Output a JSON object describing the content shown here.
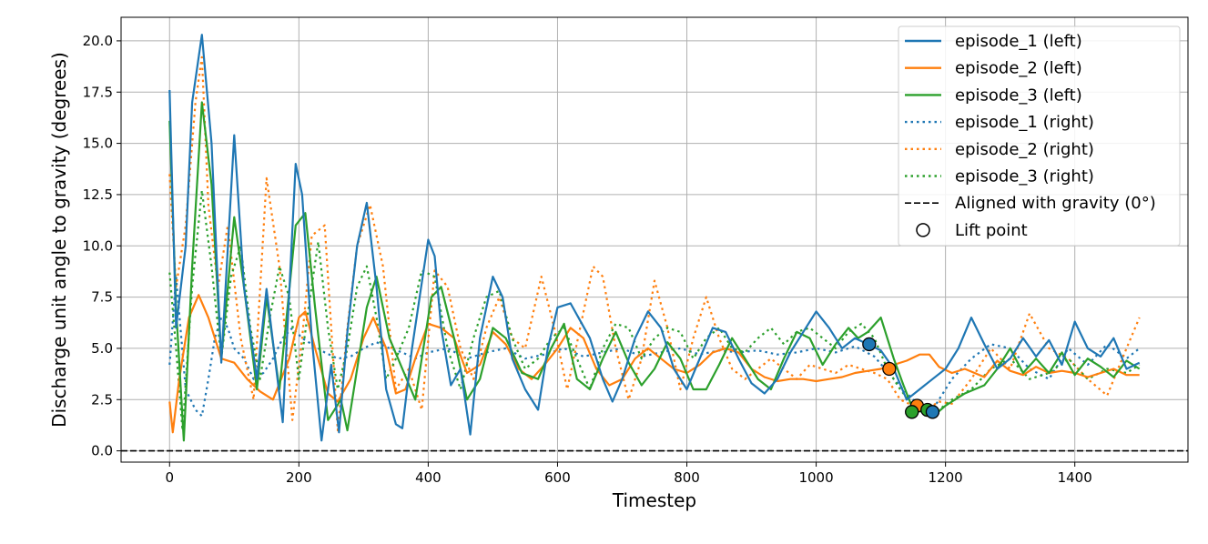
{
  "chart_data": {
    "type": "line",
    "title": "",
    "xlabel": "Timestep",
    "ylabel": "Discharge unit angle to gravity (degrees)",
    "xlim": [
      -75,
      1575
    ],
    "ylim": [
      -0.55,
      21.15
    ],
    "xticks": [
      0,
      200,
      400,
      600,
      800,
      1000,
      1200,
      1400
    ],
    "yticks": [
      0.0,
      2.5,
      5.0,
      7.5,
      10.0,
      12.5,
      15.0,
      17.5,
      20.0
    ],
    "xtick_labels": [
      "0",
      "200",
      "400",
      "600",
      "800",
      "1000",
      "1200",
      "1400"
    ],
    "ytick_labels": [
      "0.0",
      "2.5",
      "5.0",
      "7.5",
      "10.0",
      "12.5",
      "15.0",
      "17.5",
      "20.0"
    ],
    "grid": true,
    "legend_position": "upper right",
    "colors": {
      "blue": "#1f77b4",
      "orange": "#ff7f0e",
      "green": "#2ca02c",
      "reference": "#000000",
      "grid": "#b0b0b0"
    },
    "series": [
      {
        "name": "episode_1 (left)",
        "color": "#1f77b4",
        "style": "solid",
        "x": [
          0,
          10,
          25,
          35,
          50,
          65,
          80,
          100,
          115,
          135,
          150,
          175,
          195,
          205,
          220,
          235,
          250,
          262,
          275,
          290,
          305,
          320,
          335,
          350,
          360,
          375,
          400,
          410,
          420,
          435,
          450,
          465,
          480,
          500,
          515,
          530,
          550,
          570,
          585,
          600,
          620,
          650,
          670,
          685,
          700,
          720,
          740,
          760,
          780,
          800,
          820,
          840,
          860,
          880,
          900,
          920,
          940,
          960,
          980,
          1000,
          1020,
          1040,
          1060,
          1080,
          1100,
          1120,
          1140,
          1160,
          1180,
          1200,
          1220,
          1240,
          1260,
          1280,
          1300,
          1320,
          1340,
          1360,
          1380,
          1400,
          1420,
          1440,
          1460,
          1480,
          1500
        ],
        "y": [
          17.6,
          6.0,
          10.0,
          17.0,
          20.3,
          15.0,
          4.3,
          15.4,
          8.0,
          3.5,
          7.9,
          1.4,
          14.0,
          12.5,
          5.5,
          0.5,
          4.2,
          0.9,
          5.8,
          10.0,
          12.1,
          8.0,
          3.0,
          1.3,
          1.1,
          5.0,
          10.3,
          9.5,
          6.0,
          3.2,
          4.0,
          0.8,
          5.5,
          8.5,
          7.5,
          4.5,
          3.0,
          2.0,
          5.0,
          7.0,
          7.2,
          5.5,
          3.5,
          2.4,
          3.5,
          5.5,
          6.8,
          6.0,
          4.0,
          3.0,
          4.5,
          6.0,
          5.8,
          4.5,
          3.3,
          2.8,
          3.5,
          4.8,
          5.8,
          6.8,
          6.0,
          5.0,
          5.5,
          5.2,
          4.9,
          4.0,
          2.5,
          3.0,
          3.5,
          4.0,
          5.0,
          6.5,
          5.2,
          4.0,
          4.5,
          5.5,
          4.6,
          5.4,
          4.2,
          6.3,
          5.0,
          4.6,
          5.5,
          4.0,
          4.3
        ]
      },
      {
        "name": "episode_2 (left)",
        "color": "#ff7f0e",
        "style": "solid",
        "x": [
          0,
          5,
          15,
          30,
          45,
          60,
          80,
          100,
          120,
          140,
          160,
          185,
          200,
          210,
          225,
          245,
          260,
          280,
          300,
          315,
          335,
          350,
          365,
          380,
          400,
          420,
          440,
          460,
          480,
          500,
          520,
          540,
          560,
          580,
          600,
          620,
          640,
          660,
          680,
          700,
          720,
          740,
          760,
          780,
          800,
          820,
          840,
          860,
          880,
          900,
          920,
          940,
          960,
          980,
          1000,
          1020,
          1040,
          1060,
          1080,
          1100,
          1120,
          1140,
          1160,
          1175,
          1190,
          1210,
          1230,
          1260,
          1280,
          1300,
          1320,
          1340,
          1360,
          1380,
          1400,
          1420,
          1440,
          1460,
          1480,
          1500
        ],
        "y": [
          2.4,
          0.9,
          3.5,
          6.5,
          7.6,
          6.5,
          4.5,
          4.3,
          3.5,
          2.9,
          2.5,
          4.5,
          6.5,
          6.8,
          5.0,
          2.8,
          2.4,
          3.5,
          5.5,
          6.5,
          5.0,
          2.8,
          3.0,
          4.5,
          6.2,
          6.0,
          5.5,
          3.8,
          4.2,
          5.8,
          5.2,
          4.0,
          3.5,
          4.2,
          5.0,
          6.0,
          5.5,
          4.0,
          3.2,
          3.5,
          4.5,
          5.0,
          4.5,
          4.0,
          3.8,
          4.2,
          4.8,
          5.0,
          4.8,
          4.0,
          3.6,
          3.4,
          3.5,
          3.5,
          3.4,
          3.5,
          3.6,
          3.8,
          3.9,
          4.0,
          4.2,
          4.4,
          4.7,
          4.7,
          4.1,
          3.8,
          4.0,
          3.6,
          4.4,
          3.9,
          3.7,
          4.1,
          3.8,
          3.9,
          3.8,
          3.6,
          3.8,
          4.0,
          3.7,
          3.7
        ]
      },
      {
        "name": "episode_3 (left)",
        "color": "#2ca02c",
        "style": "solid",
        "x": [
          0,
          10,
          22,
          35,
          50,
          65,
          80,
          100,
          115,
          135,
          150,
          170,
          195,
          210,
          225,
          245,
          265,
          275,
          290,
          305,
          320,
          340,
          360,
          380,
          405,
          420,
          440,
          460,
          480,
          500,
          520,
          545,
          570,
          590,
          610,
          630,
          650,
          670,
          690,
          710,
          730,
          750,
          770,
          790,
          810,
          830,
          850,
          870,
          890,
          910,
          930,
          950,
          970,
          990,
          1010,
          1030,
          1050,
          1065,
          1080,
          1100,
          1120,
          1135,
          1150,
          1165,
          1185,
          1200,
          1230,
          1260,
          1280,
          1300,
          1320,
          1340,
          1360,
          1380,
          1400,
          1420,
          1440,
          1460,
          1480,
          1500
        ],
        "y": [
          16.1,
          7.0,
          0.5,
          9.0,
          17.0,
          13.0,
          4.5,
          11.4,
          8.0,
          3.0,
          7.5,
          3.0,
          11.0,
          11.6,
          7.0,
          1.5,
          2.5,
          1.0,
          4.0,
          7.0,
          8.5,
          5.5,
          4.0,
          2.5,
          7.5,
          8.0,
          5.5,
          2.5,
          3.5,
          6.0,
          5.5,
          3.8,
          3.5,
          5.0,
          6.2,
          3.5,
          3.0,
          4.5,
          5.8,
          4.3,
          3.2,
          4.0,
          5.3,
          4.5,
          3.0,
          3.0,
          4.2,
          5.5,
          4.5,
          3.5,
          3.0,
          4.5,
          5.8,
          5.5,
          4.2,
          5.2,
          6.0,
          5.5,
          5.8,
          6.5,
          4.5,
          3.2,
          2.0,
          1.9,
          1.8,
          2.2,
          2.8,
          3.2,
          4.0,
          5.0,
          3.8,
          4.5,
          3.8,
          4.8,
          3.7,
          4.5,
          4.1,
          3.6,
          4.4,
          4.0
        ]
      },
      {
        "name": "episode_1 (right)",
        "color": "#1f77b4",
        "style": "dotted",
        "x": [
          0,
          10,
          25,
          40,
          50,
          60,
          70,
          80,
          90,
          100,
          115,
          130,
          145,
          160,
          175,
          190,
          205,
          220,
          240,
          260,
          280,
          300,
          320,
          340,
          360,
          380,
          400,
          430,
          460,
          490,
          520,
          550,
          580,
          610,
          640,
          670,
          700,
          730,
          760,
          790,
          820,
          850,
          880,
          910,
          940,
          970,
          1000,
          1030,
          1060,
          1090,
          1120,
          1150,
          1180,
          1210,
          1240,
          1270,
          1300,
          1330,
          1360,
          1390,
          1420,
          1450,
          1480,
          1500
        ],
        "y": [
          4.2,
          8.5,
          3.0,
          2.0,
          1.7,
          3.5,
          5.5,
          6.5,
          6.0,
          5.0,
          4.5,
          3.5,
          3.8,
          4.5,
          5.5,
          6.0,
          5.5,
          5.2,
          4.8,
          4.5,
          4.6,
          5.0,
          5.3,
          5.0,
          4.8,
          4.5,
          4.8,
          5.0,
          4.5,
          4.8,
          5.0,
          4.5,
          4.7,
          5.0,
          4.6,
          4.8,
          5.0,
          4.6,
          4.8,
          5.0,
          4.7,
          4.9,
          4.8,
          4.9,
          4.7,
          4.8,
          5.0,
          4.8,
          5.1,
          4.6,
          3.5,
          2.5,
          2.0,
          3.5,
          4.5,
          5.2,
          5.0,
          4.0,
          3.5,
          5.0,
          4.2,
          5.2,
          4.5,
          5.0
        ]
      },
      {
        "name": "episode_2 (right)",
        "color": "#ff7f0e",
        "style": "dotted",
        "x": [
          0,
          10,
          25,
          40,
          50,
          60,
          75,
          90,
          110,
          130,
          150,
          170,
          190,
          205,
          220,
          240,
          260,
          275,
          290,
          310,
          330,
          350,
          370,
          390,
          410,
          430,
          450,
          470,
          490,
          510,
          530,
          550,
          575,
          595,
          615,
          635,
          655,
          670,
          690,
          710,
          730,
          750,
          770,
          790,
          810,
          830,
          850,
          870,
          890,
          910,
          930,
          950,
          970,
          990,
          1010,
          1030,
          1050,
          1070,
          1090,
          1110,
          1130,
          1150,
          1170,
          1190,
          1210,
          1240,
          1270,
          1300,
          1330,
          1360,
          1390,
          1420,
          1450,
          1480,
          1500
        ],
        "y": [
          13.5,
          8.0,
          11.0,
          17.0,
          19.2,
          12.0,
          8.0,
          11.0,
          5.5,
          2.5,
          13.3,
          9.0,
          1.5,
          5.5,
          10.5,
          11.0,
          1.0,
          6.0,
          10.0,
          12.0,
          9.0,
          3.0,
          4.0,
          2.0,
          8.8,
          8.0,
          5.0,
          3.5,
          6.0,
          7.5,
          5.5,
          5.0,
          8.5,
          6.0,
          3.0,
          6.0,
          9.0,
          8.5,
          5.0,
          2.5,
          4.5,
          8.3,
          6.0,
          3.0,
          5.5,
          7.5,
          5.5,
          4.0,
          3.5,
          4.0,
          4.5,
          4.0,
          3.5,
          4.2,
          4.0,
          3.8,
          4.2,
          4.0,
          3.8,
          3.5,
          2.5,
          2.2,
          2.0,
          2.4,
          2.3,
          3.5,
          5.0,
          4.0,
          6.7,
          5.0,
          4.5,
          3.5,
          2.7,
          5.0,
          6.5
        ]
      },
      {
        "name": "episode_3 (right)",
        "color": "#2ca02c",
        "style": "dotted",
        "x": [
          0,
          10,
          20,
          35,
          50,
          65,
          80,
          95,
          110,
          125,
          140,
          155,
          170,
          185,
          200,
          215,
          230,
          245,
          260,
          275,
          290,
          305,
          320,
          335,
          350,
          370,
          390,
          410,
          430,
          450,
          470,
          490,
          510,
          530,
          550,
          570,
          590,
          610,
          630,
          650,
          670,
          690,
          710,
          730,
          750,
          770,
          790,
          810,
          830,
          850,
          870,
          890,
          910,
          930,
          950,
          970,
          990,
          1010,
          1030,
          1050,
          1070,
          1090,
          1110,
          1130,
          1150,
          1170,
          1190,
          1210,
          1240,
          1270,
          1300,
          1330,
          1360,
          1390,
          1420,
          1450,
          1480,
          1500
        ],
        "y": [
          8.7,
          5.0,
          1.0,
          8.0,
          12.7,
          9.0,
          4.5,
          8.5,
          10.0,
          6.0,
          3.5,
          6.5,
          9.0,
          7.5,
          3.5,
          7.0,
          10.2,
          6.0,
          3.0,
          5.0,
          8.0,
          9.0,
          6.5,
          3.5,
          4.5,
          6.0,
          8.8,
          8.5,
          5.0,
          3.0,
          5.5,
          7.5,
          7.8,
          5.5,
          4.0,
          4.5,
          5.5,
          6.0,
          4.5,
          3.0,
          5.0,
          6.2,
          6.0,
          4.5,
          5.5,
          6.0,
          5.8,
          4.5,
          5.5,
          6.0,
          5.0,
          4.8,
          5.5,
          6.0,
          5.2,
          5.8,
          6.0,
          5.5,
          5.0,
          5.8,
          6.2,
          5.5,
          4.0,
          3.0,
          2.2,
          2.0,
          2.0,
          2.5,
          3.0,
          4.0,
          4.5,
          3.5,
          3.8,
          4.5,
          3.5,
          4.0,
          3.8,
          4.2
        ]
      },
      {
        "name": "Aligned with gravity (0°)",
        "color": "#000000",
        "style": "dashed",
        "x": [
          -75,
          1575
        ],
        "y": [
          0,
          0
        ]
      }
    ],
    "lift_points": {
      "name": "Lift point",
      "points": [
        {
          "x": 1082,
          "y": 5.2,
          "color": "#1f77b4"
        },
        {
          "x": 1113,
          "y": 4.0,
          "color": "#ff7f0e"
        },
        {
          "x": 1156,
          "y": 2.2,
          "color": "#ff7f0e"
        },
        {
          "x": 1148,
          "y": 1.9,
          "color": "#2ca02c"
        },
        {
          "x": 1172,
          "y": 2.0,
          "color": "#2ca02c"
        },
        {
          "x": 1180,
          "y": 1.9,
          "color": "#1f77b4"
        }
      ]
    },
    "legend": [
      {
        "label": "episode_1 (left)",
        "color": "#1f77b4",
        "style": "solid"
      },
      {
        "label": "episode_2 (left)",
        "color": "#ff7f0e",
        "style": "solid"
      },
      {
        "label": "episode_3 (left)",
        "color": "#2ca02c",
        "style": "solid"
      },
      {
        "label": "episode_1 (right)",
        "color": "#1f77b4",
        "style": "dotted"
      },
      {
        "label": "episode_2 (right)",
        "color": "#ff7f0e",
        "style": "dotted"
      },
      {
        "label": "episode_3 (right)",
        "color": "#2ca02c",
        "style": "dotted"
      },
      {
        "label": "Aligned with gravity (0°)",
        "color": "#000000",
        "style": "dashed"
      },
      {
        "label": "Lift point",
        "color": "#000000",
        "style": "marker"
      }
    ]
  }
}
